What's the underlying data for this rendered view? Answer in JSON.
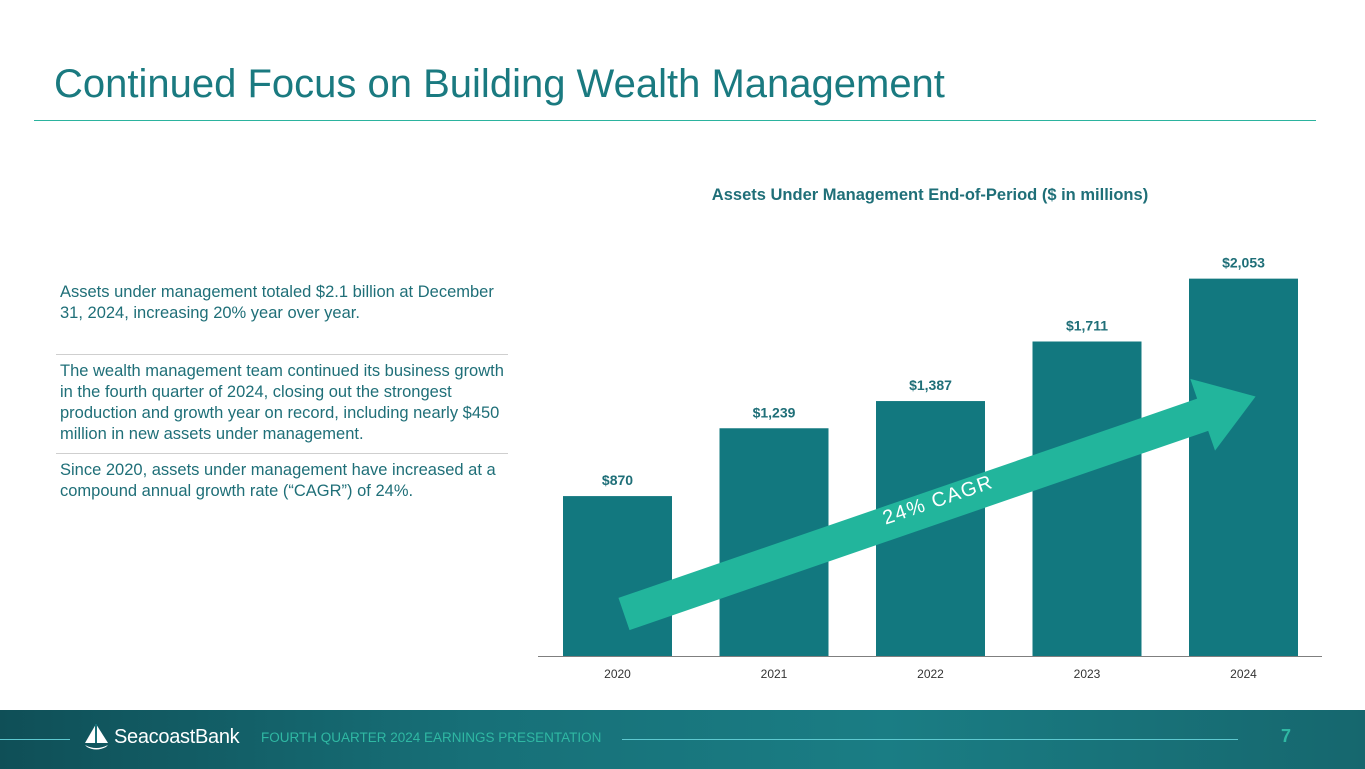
{
  "slide": {
    "title": "Continued Focus on Building Wealth Management",
    "bullets": [
      "Assets under management totaled $2.1 billion at December 31, 2024, increasing 20% year over year.",
      "The wealth management team continued its business growth in the fourth quarter of 2024, closing out the strongest production and growth year on record, including nearly $450 million in new assets under management.",
      "Since 2020, assets under management have increased at a compound annual growth rate (“CAGR”) of 24%."
    ]
  },
  "chart_data": {
    "type": "bar",
    "title": "Assets Under Management End-of-Period ($ in millions)",
    "categories": [
      "2020",
      "2021",
      "2022",
      "2023",
      "2024"
    ],
    "values": [
      870,
      1239,
      1387,
      1711,
      2053
    ],
    "data_labels": [
      "$870",
      "$1,239",
      "$1,387",
      "$1,711",
      "$2,053"
    ],
    "ylim": [
      0,
      2100
    ],
    "xlabel": "",
    "ylabel": "",
    "grid": false,
    "bar_color": "#12787f",
    "annotation": {
      "text": "24% CAGR",
      "color": "#22b59c"
    }
  },
  "footer": {
    "brand": "SeacoastBank",
    "caption": "FOURTH QUARTER 2024 EARNINGS PRESENTATION",
    "page_number": "7"
  }
}
